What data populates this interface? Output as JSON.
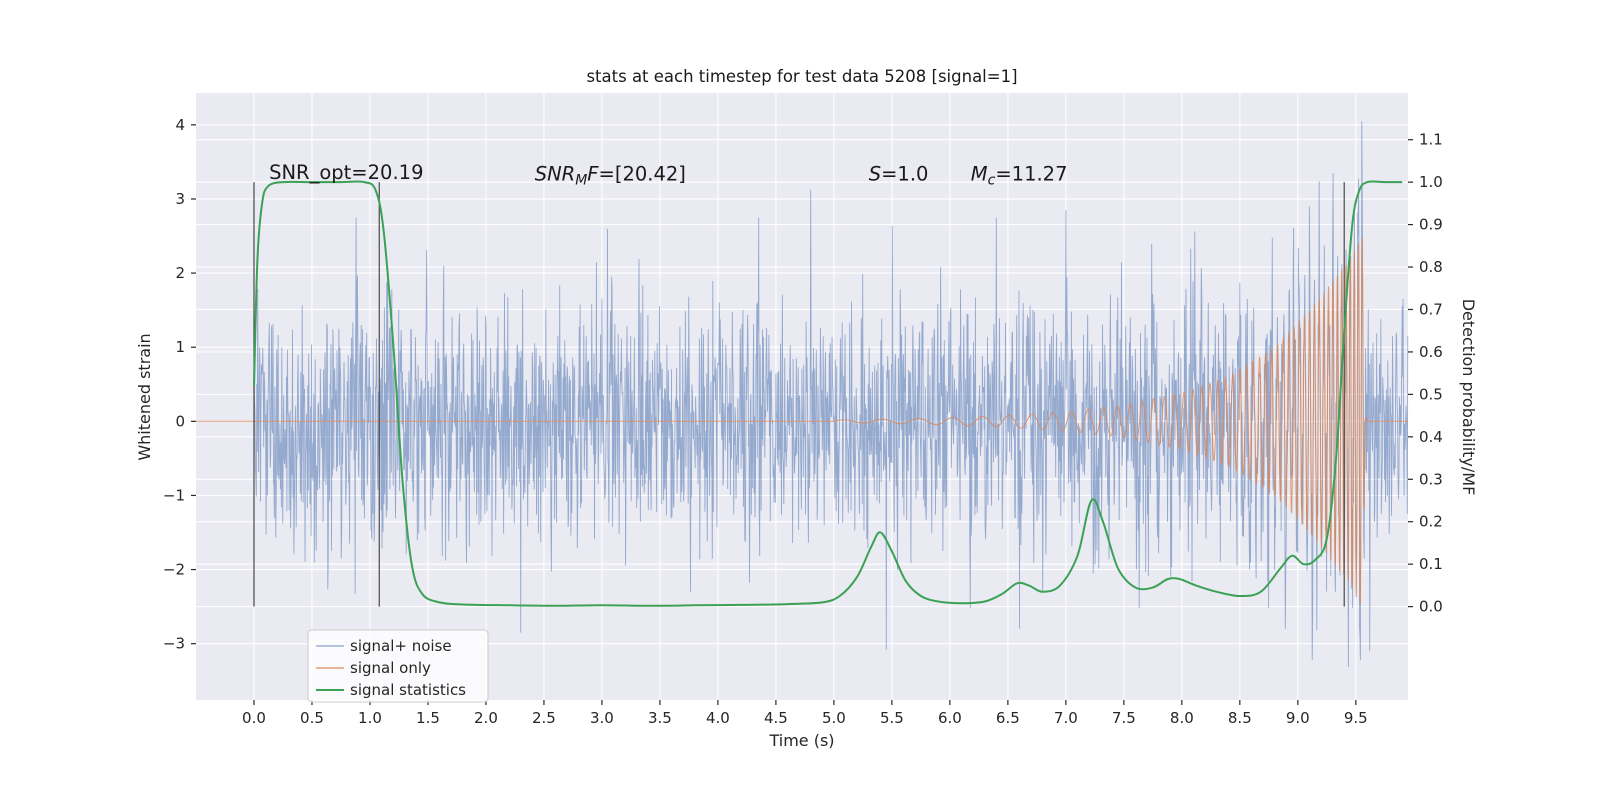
{
  "figure": {
    "bg_color": "#ffffff",
    "axes_bg_color": "#eaeaf2",
    "grid_color": "#ffffff",
    "tick_color": "#262626"
  },
  "chart_data": {
    "type": "line",
    "title": "stats at each timestep for test data 5208 [signal=1]",
    "xlabel": "Time (s)",
    "ylabel_left": "Whitened strain",
    "ylabel_right": "Detection probability/MF",
    "xlim": [
      -0.5,
      9.95
    ],
    "ylim_left": [
      -3.76,
      4.43
    ],
    "ylim_right": [
      -0.22,
      1.21
    ],
    "x_ticks": [
      0.0,
      0.5,
      1.0,
      1.5,
      2.0,
      2.5,
      3.0,
      3.5,
      4.0,
      4.5,
      5.0,
      5.5,
      6.0,
      6.5,
      7.0,
      7.5,
      8.0,
      8.5,
      9.0,
      9.5
    ],
    "x_tick_decimals": 1,
    "y_ticks_left": [
      -3,
      -2,
      -1,
      0,
      1,
      2,
      3,
      4
    ],
    "y_left_decimals": 0,
    "y_ticks_right": [
      0.0,
      0.1,
      0.2,
      0.3,
      0.4,
      0.5,
      0.6,
      0.7,
      0.8,
      0.9,
      1.0,
      1.1
    ],
    "y_right_decimals": 1,
    "annotations": [
      {
        "text": "SNR_opt=20.19",
        "x": 0.13,
        "y": 3.27,
        "parts": [
          {
            "t": "SNR_opt=20.19"
          }
        ]
      },
      {
        "text": "SNR_MF=[20.42]",
        "x": 2.42,
        "y": 3.25,
        "parts": [
          {
            "t": "SNR",
            "i": true
          },
          {
            "t": "M",
            "i": true,
            "sub": true
          },
          {
            "t": "F",
            "i": true
          },
          {
            "t": "=[20.42]"
          }
        ]
      },
      {
        "text": "S=1.0",
        "x": 5.3,
        "y": 3.25,
        "parts": [
          {
            "t": "S",
            "i": true
          },
          {
            "t": "=1.0"
          }
        ]
      },
      {
        "text": "M_c=11.27",
        "x": 6.18,
        "y": 3.25,
        "parts": [
          {
            "t": "M",
            "i": true
          },
          {
            "t": "c",
            "i": true,
            "sub": true
          },
          {
            "t": "=11.27"
          }
        ]
      }
    ],
    "vlines": {
      "x": [
        0.0,
        1.08,
        9.4
      ],
      "y0": 0.0,
      "y1": 1.0,
      "axis": "right",
      "color": "#4a4a4a"
    },
    "series": [
      {
        "name": "signal+ noise",
        "kind": "noise",
        "axis": "left",
        "color": "#4c72b0",
        "opacity": 0.55,
        "width": 0.9,
        "sigma": 0.82,
        "seed": 5208,
        "dt": 0.004,
        "t_range": [
          0.0,
          9.95
        ],
        "feature_points": [
          [
            9.55,
            4.05
          ],
          [
            5.45,
            -3.08
          ],
          [
            0.88,
            2.75
          ],
          [
            3.05,
            2.6
          ],
          [
            7.0,
            2.85
          ],
          [
            9.1,
            2.9
          ],
          [
            2.3,
            -2.85
          ],
          [
            9.62,
            -3.1
          ],
          [
            4.35,
            2.75
          ],
          [
            6.6,
            -2.8
          ]
        ]
      },
      {
        "name": "signal only",
        "kind": "chirp",
        "axis": "left",
        "color": "#dd8452",
        "opacity": 0.8,
        "width": 1,
        "t_range": [
          -0.5,
          9.95
        ],
        "t_signal_start": 5.0,
        "t_merger": 9.56,
        "f0": 3,
        "f_coef": 0.6,
        "f_pow": 2.5,
        "envelope": [
          [
            5.0,
            0.015
          ],
          [
            5.5,
            0.03
          ],
          [
            6.0,
            0.05
          ],
          [
            6.5,
            0.08
          ],
          [
            7.0,
            0.13
          ],
          [
            7.5,
            0.22
          ],
          [
            8.0,
            0.38
          ],
          [
            8.4,
            0.6
          ],
          [
            8.8,
            1.0
          ],
          [
            9.1,
            1.5
          ],
          [
            9.3,
            1.9
          ],
          [
            9.45,
            2.2
          ],
          [
            9.53,
            2.45
          ],
          [
            9.56,
            2.5
          ],
          [
            9.58,
            0.08
          ],
          [
            9.6,
            0.0
          ]
        ]
      },
      {
        "name": "signal statistics",
        "kind": "smooth",
        "axis": "right",
        "color": "#3aa155",
        "opacity": 1,
        "width": 2,
        "points": [
          [
            0.0,
            0.52
          ],
          [
            0.03,
            0.82
          ],
          [
            0.07,
            0.95
          ],
          [
            0.12,
            0.99
          ],
          [
            0.25,
            1.0
          ],
          [
            0.5,
            1.0
          ],
          [
            0.75,
            1.0
          ],
          [
            0.95,
            1.0
          ],
          [
            1.05,
            0.98
          ],
          [
            1.12,
            0.88
          ],
          [
            1.2,
            0.62
          ],
          [
            1.28,
            0.3
          ],
          [
            1.36,
            0.1
          ],
          [
            1.45,
            0.03
          ],
          [
            1.6,
            0.01
          ],
          [
            1.8,
            0.005
          ],
          [
            2.2,
            0.003
          ],
          [
            2.6,
            0.002
          ],
          [
            3.0,
            0.003
          ],
          [
            3.4,
            0.002
          ],
          [
            3.8,
            0.003
          ],
          [
            4.2,
            0.004
          ],
          [
            4.6,
            0.006
          ],
          [
            4.9,
            0.01
          ],
          [
            5.05,
            0.025
          ],
          [
            5.2,
            0.07
          ],
          [
            5.32,
            0.14
          ],
          [
            5.4,
            0.175
          ],
          [
            5.5,
            0.13
          ],
          [
            5.62,
            0.06
          ],
          [
            5.75,
            0.025
          ],
          [
            5.9,
            0.012
          ],
          [
            6.1,
            0.008
          ],
          [
            6.3,
            0.012
          ],
          [
            6.45,
            0.03
          ],
          [
            6.58,
            0.055
          ],
          [
            6.68,
            0.05
          ],
          [
            6.8,
            0.035
          ],
          [
            6.95,
            0.05
          ],
          [
            7.1,
            0.12
          ],
          [
            7.22,
            0.25
          ],
          [
            7.32,
            0.2
          ],
          [
            7.45,
            0.09
          ],
          [
            7.6,
            0.045
          ],
          [
            7.75,
            0.045
          ],
          [
            7.88,
            0.065
          ],
          [
            7.98,
            0.065
          ],
          [
            8.12,
            0.05
          ],
          [
            8.3,
            0.035
          ],
          [
            8.5,
            0.025
          ],
          [
            8.68,
            0.035
          ],
          [
            8.85,
            0.09
          ],
          [
            8.95,
            0.12
          ],
          [
            9.05,
            0.1
          ],
          [
            9.15,
            0.11
          ],
          [
            9.25,
            0.16
          ],
          [
            9.33,
            0.35
          ],
          [
            9.4,
            0.65
          ],
          [
            9.47,
            0.9
          ],
          [
            9.53,
            0.98
          ],
          [
            9.6,
            1.0
          ],
          [
            9.75,
            1.0
          ],
          [
            9.9,
            1.0
          ]
        ]
      }
    ],
    "legend": {
      "items": [
        "signal+ noise",
        "signal only",
        "signal statistics"
      ]
    }
  }
}
